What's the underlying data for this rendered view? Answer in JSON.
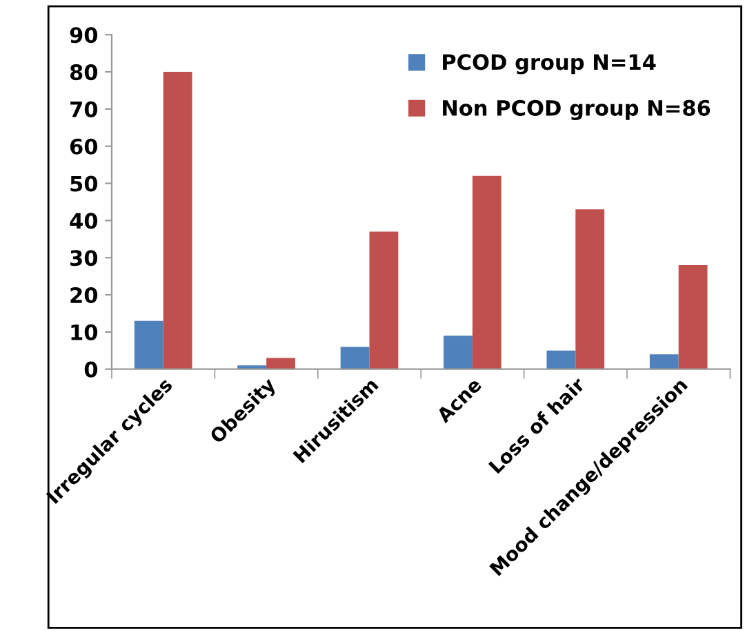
{
  "chart_data": {
    "type": "bar",
    "categories": [
      "Irregular cycles",
      "Obesity",
      "Hirusitism",
      "Acne",
      "Loss of hair",
      "Mood change/depression"
    ],
    "series": [
      {
        "name": "PCOD group N=14",
        "color": "#4f81bd",
        "values": [
          13,
          1,
          6,
          9,
          5,
          4
        ]
      },
      {
        "name": "Non PCOD group N=86",
        "color": "#c0504d",
        "values": [
          80,
          3,
          37,
          52,
          43,
          28
        ]
      }
    ],
    "ylim": [
      0,
      90
    ],
    "yticks": [
      0,
      10,
      20,
      30,
      40,
      50,
      60,
      70,
      80,
      90
    ],
    "grid": false,
    "legend": "top right"
  }
}
